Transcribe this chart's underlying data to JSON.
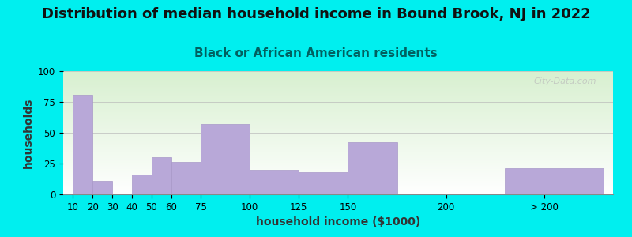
{
  "title": "Distribution of median household income in Bound Brook, NJ in 2022",
  "subtitle": "Black or African American residents",
  "xlabel": "household income ($1000)",
  "ylabel": "households",
  "background_color": "#00EFEF",
  "plot_bg_top": "#d8f0d0",
  "plot_bg_bottom": "#ffffff",
  "bar_color": "#b8a8d8",
  "bar_edge_color": "#a898c8",
  "watermark": "City-Data.com",
  "categories": [
    "10",
    "20",
    "30",
    "40",
    "50",
    "60",
    "75",
    "100",
    "125",
    "150",
    "200",
    "> 200"
  ],
  "values": [
    81,
    11,
    0,
    16,
    30,
    26,
    57,
    20,
    18,
    42,
    0,
    21
  ],
  "ylim": [
    0,
    100
  ],
  "yticks": [
    0,
    25,
    50,
    75,
    100
  ],
  "title_fontsize": 13,
  "subtitle_fontsize": 11,
  "xlabel_fontsize": 10,
  "ylabel_fontsize": 10,
  "tick_fontsize": 8.5
}
